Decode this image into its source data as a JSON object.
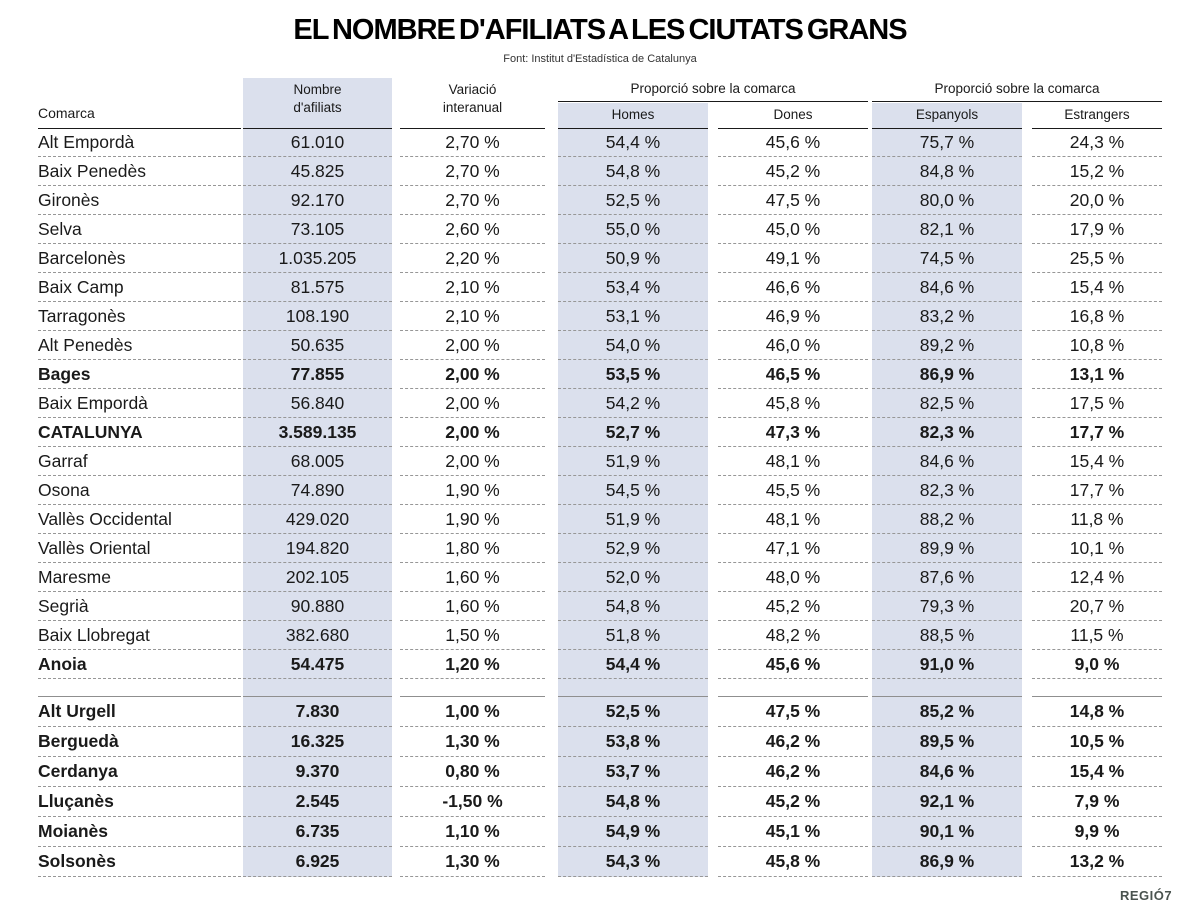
{
  "page": {
    "title": "EL NOMBRE D'AFILIATS A LES CIUTATS GRANS",
    "source": "Font: Institut d'Estadística de Catalunya",
    "brand": "REGIÓ7"
  },
  "colors": {
    "band": "#dbe0ed",
    "text": "#1a1a1a",
    "dashed_rule": "#979797",
    "solid_rule": "#1a1a1a"
  },
  "chart_data": {
    "type": "table",
    "title": "EL NOMBRE D'AFILIATS A LES CIUTATS GRANS",
    "source": "Font: Institut d'Estadística de Catalunya",
    "headers": {
      "comarca": "Comarca",
      "afiliats_1": "Nombre",
      "afiliats_2": "d'afiliats",
      "variacio_1": "Variació",
      "variacio_2": "interanual",
      "group1": "Proporció sobre la comarca",
      "group2": "Proporció sobre la comarca",
      "homes": "Homes",
      "dones": "Dones",
      "espanyols": "Espanyols",
      "estrangers": "Estrangers"
    },
    "groups": [
      {
        "rows": [
          {
            "comarca": "Alt Empordà",
            "afiliats": "61.010",
            "variacio": "2,70 %",
            "homes": "54,4 %",
            "dones": "45,6 %",
            "espanyols": "75,7 %",
            "estrangers": "24,3 %",
            "bold": false
          },
          {
            "comarca": "Baix Penedès",
            "afiliats": "45.825",
            "variacio": "2,70 %",
            "homes": "54,8 %",
            "dones": "45,2 %",
            "espanyols": "84,8 %",
            "estrangers": "15,2 %",
            "bold": false
          },
          {
            "comarca": "Gironès",
            "afiliats": "92.170",
            "variacio": "2,70 %",
            "homes": "52,5 %",
            "dones": "47,5 %",
            "espanyols": "80,0 %",
            "estrangers": "20,0 %",
            "bold": false
          },
          {
            "comarca": "Selva",
            "afiliats": "73.105",
            "variacio": "2,60 %",
            "homes": "55,0 %",
            "dones": "45,0 %",
            "espanyols": "82,1 %",
            "estrangers": "17,9 %",
            "bold": false
          },
          {
            "comarca": "Barcelonès",
            "afiliats": "1.035.205",
            "variacio": "2,20 %",
            "homes": "50,9 %",
            "dones": "49,1 %",
            "espanyols": "74,5 %",
            "estrangers": "25,5 %",
            "bold": false
          },
          {
            "comarca": "Baix Camp",
            "afiliats": "81.575",
            "variacio": "2,10 %",
            "homes": "53,4 %",
            "dones": "46,6 %",
            "espanyols": "84,6 %",
            "estrangers": "15,4 %",
            "bold": false
          },
          {
            "comarca": "Tarragonès",
            "afiliats": "108.190",
            "variacio": "2,10 %",
            "homes": "53,1 %",
            "dones": "46,9 %",
            "espanyols": "83,2 %",
            "estrangers": "16,8 %",
            "bold": false
          },
          {
            "comarca": "Alt Penedès",
            "afiliats": "50.635",
            "variacio": "2,00 %",
            "homes": "54,0 %",
            "dones": "46,0 %",
            "espanyols": "89,2 %",
            "estrangers": "10,8 %",
            "bold": false
          },
          {
            "comarca": "Bages",
            "afiliats": "77.855",
            "variacio": "2,00 %",
            "homes": "53,5 %",
            "dones": "46,5 %",
            "espanyols": "86,9 %",
            "estrangers": "13,1 %",
            "bold": true
          },
          {
            "comarca": "Baix Empordà",
            "afiliats": "56.840",
            "variacio": "2,00 %",
            "homes": "54,2 %",
            "dones": "45,8 %",
            "espanyols": "82,5 %",
            "estrangers": "17,5 %",
            "bold": false
          },
          {
            "comarca": "CATALUNYA",
            "afiliats": "3.589.135",
            "variacio": "2,00 %",
            "homes": "52,7 %",
            "dones": "47,3 %",
            "espanyols": "82,3 %",
            "estrangers": "17,7 %",
            "bold": true
          },
          {
            "comarca": "Garraf",
            "afiliats": "68.005",
            "variacio": "2,00 %",
            "homes": "51,9 %",
            "dones": "48,1 %",
            "espanyols": "84,6 %",
            "estrangers": "15,4 %",
            "bold": false
          },
          {
            "comarca": "Osona",
            "afiliats": "74.890",
            "variacio": "1,90 %",
            "homes": "54,5 %",
            "dones": "45,5 %",
            "espanyols": "82,3 %",
            "estrangers": "17,7 %",
            "bold": false
          },
          {
            "comarca": "Vallès Occidental",
            "afiliats": "429.020",
            "variacio": "1,90 %",
            "homes": "51,9 %",
            "dones": "48,1 %",
            "espanyols": "88,2 %",
            "estrangers": "11,8 %",
            "bold": false
          },
          {
            "comarca": "Vallès Oriental",
            "afiliats": "194.820",
            "variacio": "1,80 %",
            "homes": "52,9 %",
            "dones": "47,1 %",
            "espanyols": "89,9 %",
            "estrangers": "10,1 %",
            "bold": false
          },
          {
            "comarca": "Maresme",
            "afiliats": "202.105",
            "variacio": "1,60 %",
            "homes": "52,0 %",
            "dones": "48,0 %",
            "espanyols": "87,6 %",
            "estrangers": "12,4 %",
            "bold": false
          },
          {
            "comarca": "Segrià",
            "afiliats": "90.880",
            "variacio": "1,60 %",
            "homes": "54,8 %",
            "dones": "45,2 %",
            "espanyols": "79,3 %",
            "estrangers": "20,7 %",
            "bold": false
          },
          {
            "comarca": "Baix Llobregat",
            "afiliats": "382.680",
            "variacio": "1,50 %",
            "homes": "51,8 %",
            "dones": "48,2 %",
            "espanyols": "88,5 %",
            "estrangers": "11,5 %",
            "bold": false
          },
          {
            "comarca": "Anoia",
            "afiliats": "54.475",
            "variacio": "1,20 %",
            "homes": "54,4 %",
            "dones": "45,6 %",
            "espanyols": "91,0 %",
            "estrangers": "9,0 %",
            "bold": true
          }
        ]
      },
      {
        "rows": [
          {
            "comarca": "Alt Urgell",
            "afiliats": "7.830",
            "variacio": "1,00 %",
            "homes": "52,5 %",
            "dones": "47,5 %",
            "espanyols": "85,2 %",
            "estrangers": "14,8 %",
            "bold": true
          },
          {
            "comarca": "Berguedà",
            "afiliats": "16.325",
            "variacio": "1,30 %",
            "homes": "53,8 %",
            "dones": "46,2 %",
            "espanyols": "89,5 %",
            "estrangers": "10,5 %",
            "bold": true
          },
          {
            "comarca": "Cerdanya",
            "afiliats": "9.370",
            "variacio": "0,80 %",
            "homes": "53,7 %",
            "dones": "46,2 %",
            "espanyols": "84,6 %",
            "estrangers": "15,4 %",
            "bold": true
          },
          {
            "comarca": "Lluçanès",
            "afiliats": "2.545",
            "variacio": "-1,50 %",
            "homes": "54,8 %",
            "dones": "45,2 %",
            "espanyols": "92,1 %",
            "estrangers": "7,9 %",
            "bold": true
          },
          {
            "comarca": "Moianès",
            "afiliats": "6.735",
            "variacio": "1,10 %",
            "homes": "54,9 %",
            "dones": "45,1 %",
            "espanyols": "90,1 %",
            "estrangers": "9,9 %",
            "bold": true
          },
          {
            "comarca": "Solsonès",
            "afiliats": "6.925",
            "variacio": "1,30 %",
            "homes": "54,3 %",
            "dones": "45,8 %",
            "espanyols": "86,9 %",
            "estrangers": "13,2 %",
            "bold": true
          }
        ]
      }
    ]
  }
}
